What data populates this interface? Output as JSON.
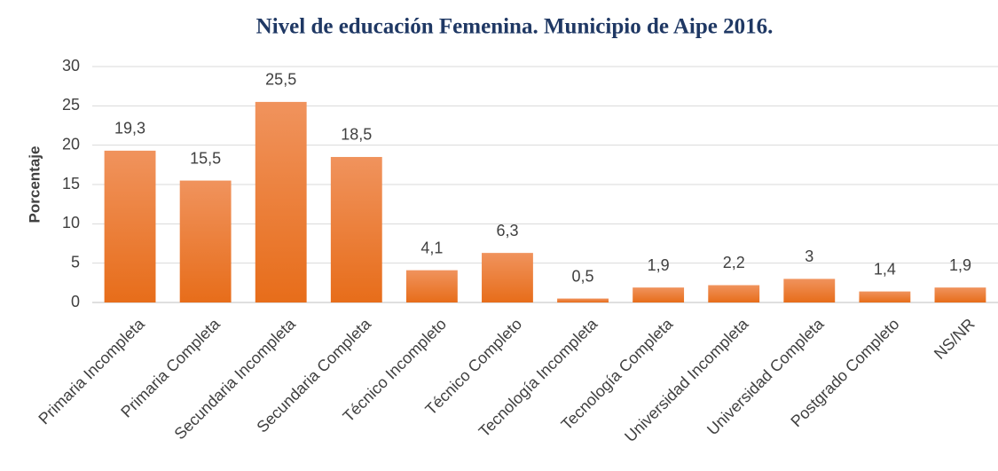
{
  "chart_data": {
    "type": "bar",
    "title": "Nivel de educación Femenina. Municipio de Aipe 2016.",
    "y_label": "Porcentaje",
    "categories": [
      "Primaria Incompleta",
      "Primaria Completa",
      "Secundaria Incompleta",
      "Secundaria Completa",
      "Técnico Incompleto",
      "Técnico Completo",
      "Tecnología Incompleta",
      "Tecnología Completa",
      "Universidad Incompleta",
      "Universidad Completa",
      "Postgrado Completo",
      "NS/NR"
    ],
    "values": [
      19.3,
      15.5,
      25.5,
      18.5,
      4.1,
      6.3,
      0.5,
      1.9,
      2.2,
      3,
      1.4,
      1.9
    ],
    "value_labels": [
      "19,3",
      "15,5",
      "25,5",
      "18,5",
      "4,1",
      "6,3",
      "0,5",
      "1,9",
      "2,2",
      "3",
      "1,4",
      "1,9"
    ],
    "color": "#ed7d31",
    "ylim": [
      0,
      30
    ],
    "yticks": [
      0,
      5,
      10,
      15,
      20,
      25,
      30
    ],
    "grid": true
  }
}
